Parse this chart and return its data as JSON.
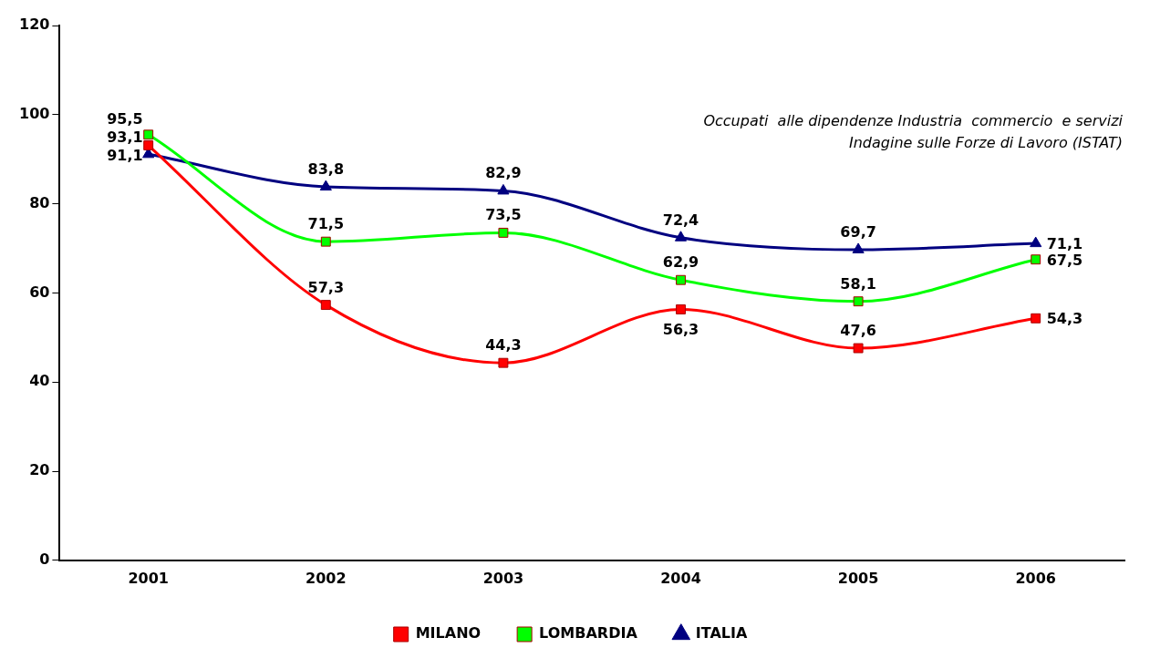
{
  "chart_data": {
    "type": "line",
    "categories": [
      "2001",
      "2002",
      "2003",
      "2004",
      "2005",
      "2006"
    ],
    "series": [
      {
        "name": "MILANO",
        "color": "#ff0000",
        "marker": "square",
        "values": [
          93.1,
          57.3,
          44.3,
          56.3,
          47.6,
          54.3
        ],
        "value_labels": [
          "93,1",
          "57,3",
          "44,3",
          "56,3",
          "47,6",
          "54,3"
        ]
      },
      {
        "name": "LOMBARDIA",
        "color": "#00ff00",
        "marker": "square",
        "values": [
          95.5,
          71.5,
          73.5,
          62.9,
          58.1,
          67.5
        ],
        "value_labels": [
          "95,5",
          "71,5",
          "73,5",
          "62,9",
          "58,1",
          "67,5"
        ]
      },
      {
        "name": "ITALIA",
        "color": "#000080",
        "marker": "triangle",
        "values": [
          91.1,
          83.8,
          82.9,
          72.4,
          69.7,
          71.1
        ],
        "value_labels": [
          "91,1",
          "83,8",
          "82,9",
          "72,4",
          "69,7",
          "71,1"
        ]
      }
    ],
    "ylim": [
      0,
      120
    ],
    "yticks": [
      0,
      20,
      40,
      60,
      80,
      100,
      120
    ],
    "grid": false,
    "legend": "bottom",
    "annotations": [
      "Occupati  alle dipendenze Industria  commercio  e servizi",
      "Indagine sulle Forze di Lavoro (ISTAT)"
    ]
  }
}
